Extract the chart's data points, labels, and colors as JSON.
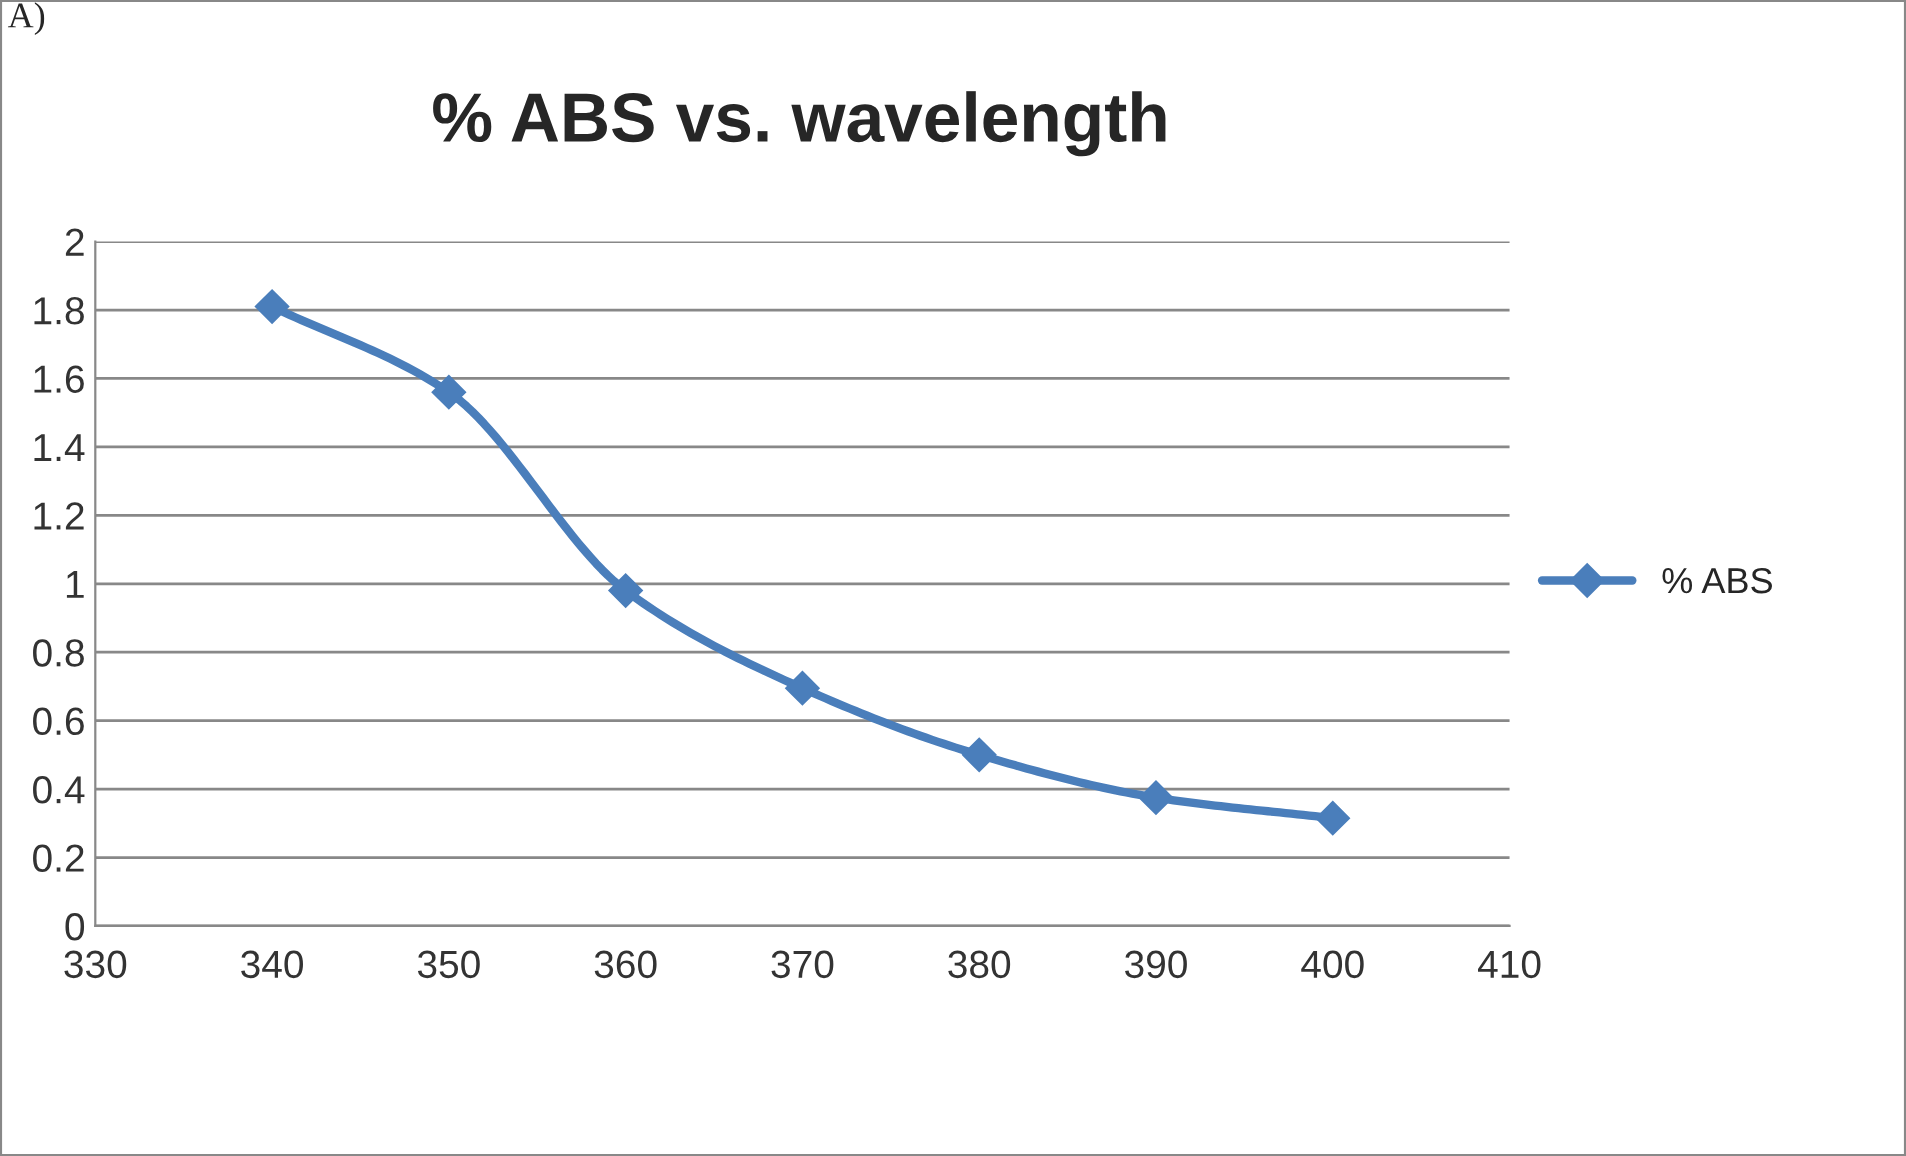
{
  "chart_data": {
    "type": "line",
    "title": "% ABS vs. wavelength",
    "annotations": [
      "A)"
    ],
    "x": [
      340,
      350,
      360,
      370,
      380,
      390,
      400
    ],
    "series": [
      {
        "name": "% ABS",
        "color": "#4a7ebb",
        "values": [
          1.81,
          1.56,
          0.98,
          0.695,
          0.5,
          0.375,
          0.315
        ]
      }
    ],
    "xlim": [
      330,
      410
    ],
    "xticks": [
      330,
      340,
      350,
      360,
      370,
      380,
      390,
      400,
      410
    ],
    "ylim": [
      0,
      2
    ],
    "yticks": [
      0,
      0.2,
      0.4,
      0.6,
      0.8,
      1,
      1.2,
      1.4,
      1.6,
      1.8,
      2
    ],
    "grid": "y",
    "legend": "right",
    "marker": "diamond",
    "line_style": "solid"
  }
}
